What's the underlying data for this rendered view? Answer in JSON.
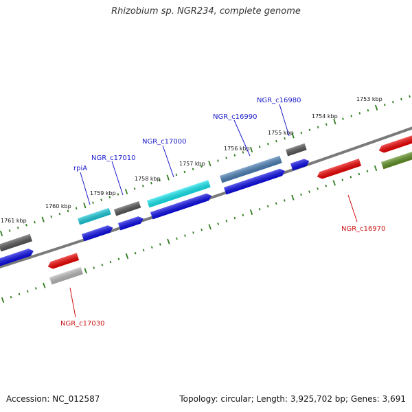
{
  "title": "Rhizobium sp. NGR234, complete genome",
  "footer": {
    "accession": "Accession: NC_012587",
    "summary": "Topology: circular; Length: 3,925,702 bp; Genes: 3,691"
  },
  "colors": {
    "backbone": "#7a7a7a",
    "tick": "#2e7d1e",
    "gene_label_blue": "#1a1acc",
    "gene_label_red": "#cc1111",
    "cds_blue": "#0a0ae6",
    "gene_gray": "#555555",
    "gene_cyan": "#18c8d8",
    "gene_aqua": "#12e6ee",
    "gene_steel": "#4a7fb5",
    "gene_red": "#ee0000",
    "gene_light_gray": "#b8b8b8",
    "gene_olive": "#5e8f22"
  },
  "kbp_labels": [
    "1753 kbp",
    "1754 kbp",
    "1755 kbp",
    "1756 kbp",
    "1757 kbp",
    "1758 kbp",
    "1759 kbp",
    "1760 kbp",
    "1761 kbp"
  ],
  "gene_labels": {
    "ngr_c16980": "NGR_c16980",
    "ngr_c16990": "NGR_c16990",
    "ngr_c17000": "NGR_c17000",
    "ngr_c17010": "NGR_c17010",
    "rpia": "rpiA",
    "ngr_c16970": "NGR_c16970",
    "ngr_c17030": "NGR_c17030"
  }
}
